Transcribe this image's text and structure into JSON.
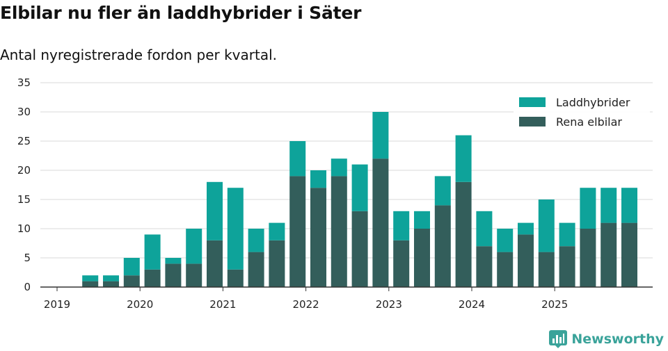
{
  "header": {
    "title": "Elbilar nu fler än laddhybrider i Säter",
    "subtitle": "Antal nyregistrerade fordon per kvartal."
  },
  "brand": {
    "name": "Newsworthy",
    "icon": "newsworthy-logo-icon",
    "color": "#3aa39a"
  },
  "chart_data": {
    "type": "bar",
    "stacked": true,
    "title": "Elbilar nu fler än laddhybrider i Säter",
    "subtitle": "Antal nyregistrerade fordon per kvartal.",
    "xlabel": "",
    "ylabel": "",
    "ylim": [
      0,
      35
    ],
    "yticks": [
      0,
      5,
      10,
      15,
      20,
      25,
      30,
      35
    ],
    "grid": true,
    "legend_position": "top-right",
    "x_tick_labels": [
      "2019",
      "2020",
      "2021",
      "2022",
      "2023",
      "2024",
      "2025"
    ],
    "categories": [
      "2019 Q2",
      "2019 Q3",
      "2019 Q4",
      "2020 Q1",
      "2020 Q2",
      "2020 Q3",
      "2020 Q4",
      "2021 Q1",
      "2021 Q2",
      "2021 Q3",
      "2021 Q4",
      "2022 Q1",
      "2022 Q2",
      "2022 Q3",
      "2022 Q4",
      "2023 Q1",
      "2023 Q2",
      "2023 Q3",
      "2023 Q4",
      "2024 Q1",
      "2024 Q2",
      "2024 Q3",
      "2024 Q4",
      "2025 Q1",
      "2025 Q2",
      "2025 Q3",
      "2025 Q4"
    ],
    "series": [
      {
        "name": "Rena elbilar",
        "color": "#335e5b",
        "values": [
          1,
          1,
          2,
          3,
          4,
          4,
          8,
          3,
          6,
          8,
          19,
          17,
          19,
          13,
          22,
          8,
          10,
          14,
          18,
          7,
          6,
          9,
          6,
          7,
          10,
          11,
          11
        ]
      },
      {
        "name": "Laddhybrider",
        "color": "#0ea39a",
        "values": [
          1,
          1,
          3,
          6,
          1,
          6,
          10,
          14,
          4,
          3,
          6,
          3,
          3,
          8,
          8,
          5,
          3,
          5,
          8,
          6,
          4,
          2,
          9,
          4,
          7,
          6,
          6
        ]
      }
    ],
    "legend_order": [
      "Laddhybrider",
      "Rena elbilar"
    ]
  }
}
